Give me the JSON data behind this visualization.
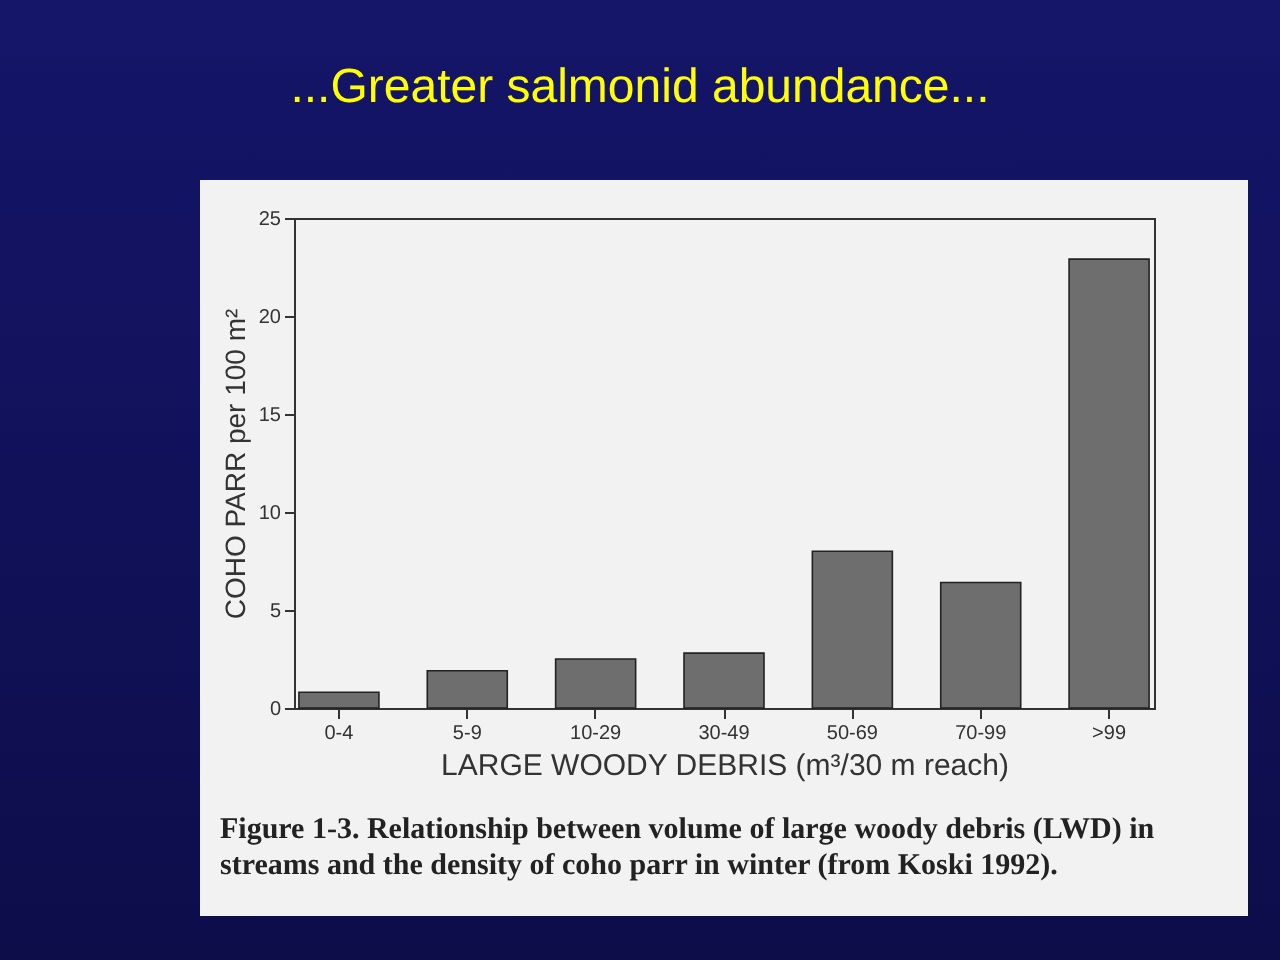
{
  "chart_data": {
    "type": "bar",
    "title": "...Greater salmonid abundance...",
    "xlabel": "LARGE WOODY DEBRIS (m³/30 m reach)",
    "ylabel": "COHO PARR per 100 m²",
    "categories": [
      "0-4",
      "5-9",
      "10-29",
      "30-49",
      "50-69",
      "70-99",
      ">99"
    ],
    "values": [
      0.8,
      1.9,
      2.5,
      2.8,
      8.0,
      6.4,
      22.9
    ],
    "color": "#6e6e6e",
    "ylim": [
      0,
      25
    ],
    "yticks": [
      0,
      5,
      10,
      15,
      20,
      25
    ],
    "grid": false,
    "annotations": [
      "Figure 1-3. Relationship between volume of large woody debris (LWD) in streams and the density of coho parr in winter (from Koski 1992)."
    ]
  }
}
